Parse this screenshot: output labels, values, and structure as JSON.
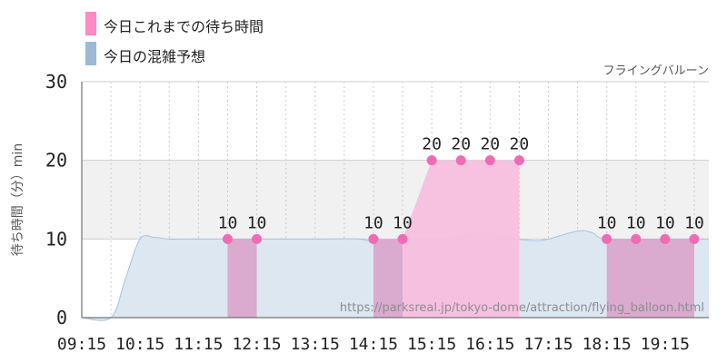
{
  "legend": {
    "waited": {
      "label": "今日これまでの待ち時間",
      "color": "#ff8ac4"
    },
    "forecast": {
      "label": "今日の混雑予想",
      "color": "#9bb9d6"
    }
  },
  "chart_data": {
    "type": "area",
    "attraction": "フライングバルーン",
    "ylabel": "待ち時間（分）min",
    "ylim": [
      0,
      30
    ],
    "y_ticks": [
      0,
      10,
      20,
      30
    ],
    "x_range": [
      "09:15",
      "20:00"
    ],
    "x_ticks": [
      "09:15",
      "10:15",
      "11:15",
      "12:15",
      "13:15",
      "14:15",
      "15:15",
      "16:15",
      "17:15",
      "18:15",
      "19:15"
    ],
    "x_minor_ticks": [
      "09:45",
      "10:45",
      "11:45",
      "12:45",
      "13:45",
      "14:45",
      "15:45",
      "16:45",
      "17:45",
      "18:45",
      "19:45"
    ],
    "shaded_band": [
      10,
      20
    ],
    "watermark": "https://parksreal.jp/tokyo-dome/attraction/flying_balloon.html",
    "series": [
      {
        "name": "今日の混雑予想",
        "style": "smooth-area",
        "color": "#dce7f2",
        "stroke": "#a9c2da",
        "x": [
          "09:15",
          "09:45",
          "10:00",
          "10:15",
          "10:30",
          "10:45",
          "11:15",
          "12:15",
          "13:15",
          "14:00",
          "14:15",
          "14:30",
          "15:00",
          "15:15",
          "15:45",
          "16:00",
          "16:15",
          "16:30",
          "17:00",
          "17:15",
          "17:45",
          "18:00",
          "18:15",
          "19:15",
          "20:00"
        ],
        "values": [
          0,
          0,
          5,
          10,
          10.2,
          10,
          10,
          10,
          10,
          10,
          9.6,
          9.6,
          10,
          10,
          10.2,
          10.8,
          10.8,
          10.2,
          9.8,
          10,
          11,
          10.8,
          10,
          10,
          10
        ]
      },
      {
        "name": "今日これまでの待ち時間",
        "style": "step-area",
        "color": "#d9a7cc",
        "point_color": "#f06bb5",
        "segments": [
          {
            "x": [
              "11:45",
              "12:15"
            ],
            "values": [
              10,
              10
            ],
            "fill": "#d9a7cc"
          },
          {
            "x": [
              "14:15",
              "14:45"
            ],
            "values": [
              10,
              10
            ],
            "fill": "#d9a7cc"
          },
          {
            "x": [
              "14:45",
              "15:15",
              "15:45",
              "16:15",
              "16:45"
            ],
            "values": [
              10,
              20,
              20,
              20,
              20
            ],
            "fill": "#f7bfde"
          },
          {
            "x": [
              "18:15",
              "18:45",
              "19:15",
              "19:45"
            ],
            "values": [
              10,
              10,
              10,
              10
            ],
            "fill": "#d9a7cc"
          }
        ],
        "points": {
          "x": [
            "11:45",
            "12:15",
            "14:15",
            "14:45",
            "15:15",
            "15:45",
            "16:15",
            "16:45",
            "18:15",
            "18:45",
            "19:15",
            "19:45"
          ],
          "values": [
            10,
            10,
            10,
            10,
            20,
            20,
            20,
            20,
            10,
            10,
            10,
            10
          ],
          "labels": [
            "10",
            "10",
            "10",
            "10",
            "20",
            "20",
            "20",
            "20",
            "10",
            "10",
            "10",
            "10"
          ]
        }
      }
    ]
  }
}
